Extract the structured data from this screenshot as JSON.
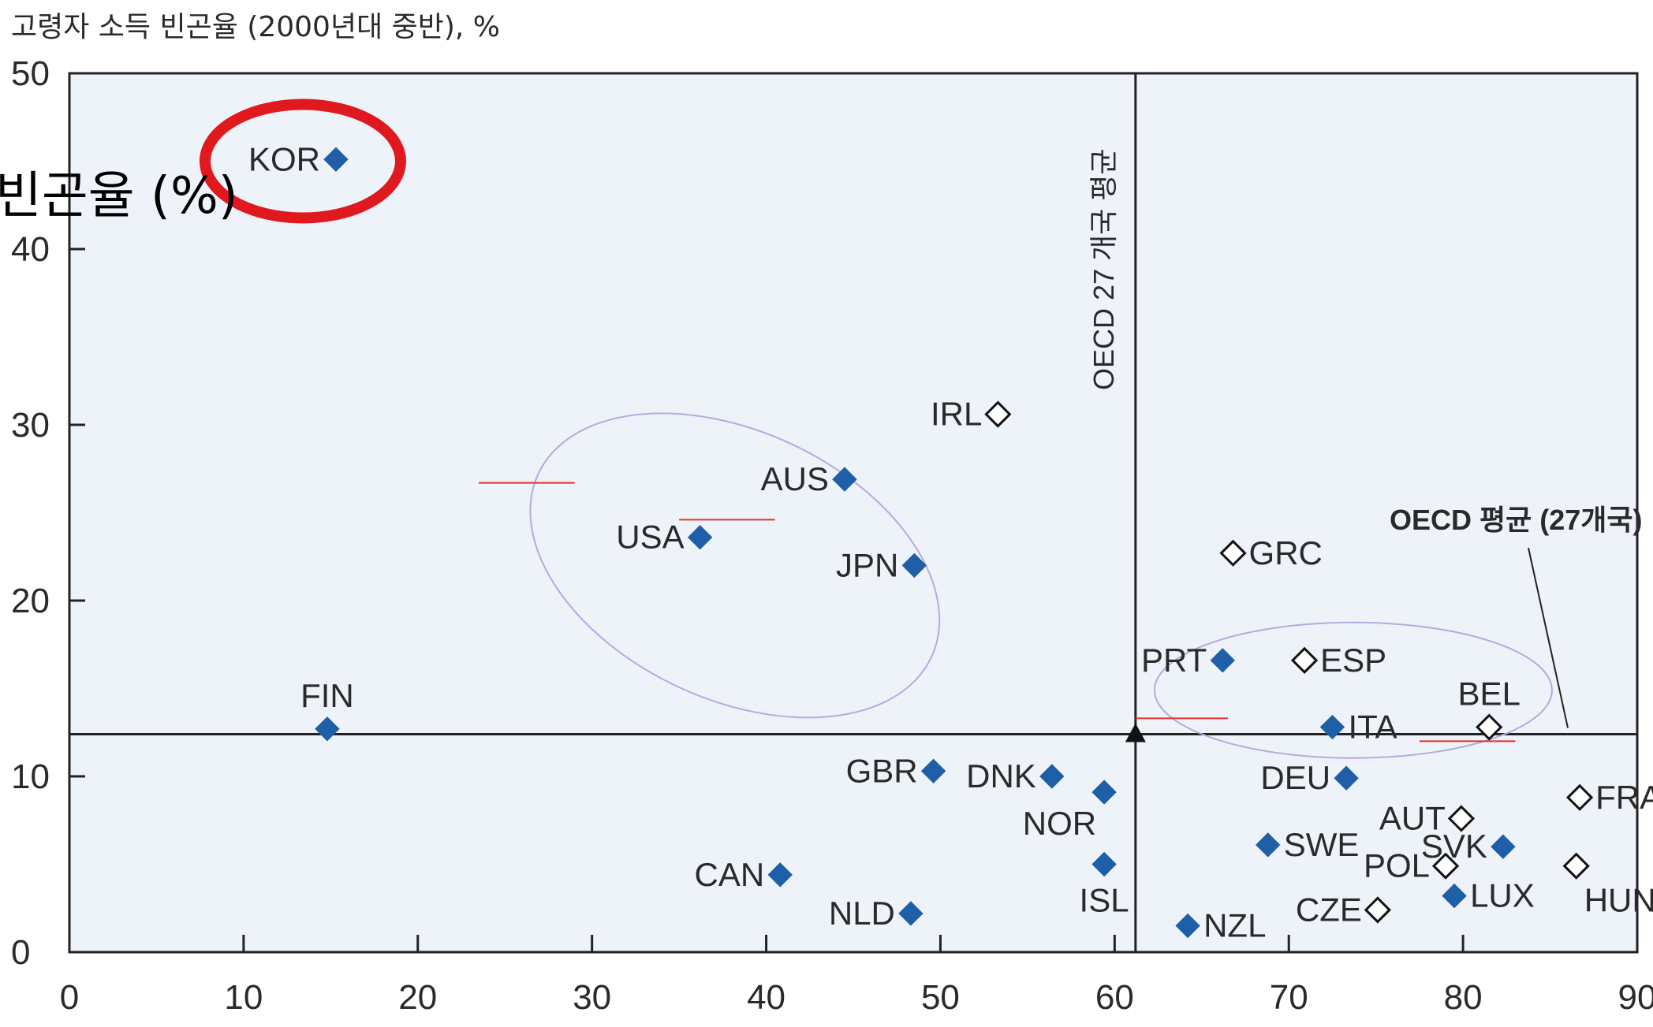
{
  "chart_data": {
    "type": "scatter",
    "title": "고령자 소득 빈곤율 (2000년대 중반), %",
    "ylabel": "빈곤율 (%)",
    "xlim": [
      0,
      90
    ],
    "ylim": [
      0,
      50
    ],
    "xticks": [
      "0",
      "10",
      "20",
      "30",
      "40",
      "50",
      "60",
      "70",
      "80",
      "90"
    ],
    "yticks": [
      "0",
      "10",
      "20",
      "30",
      "40",
      "50"
    ],
    "grid": false,
    "colors": {
      "background": "#eef3fa",
      "filled_marker": "#1f5fa8",
      "highlight_circle": "#e0191f",
      "highlight_ellipse": "#b8a8e0",
      "mark_line": "#e03030"
    },
    "points": [
      {
        "label": "KOR",
        "x": 15.3,
        "y": 45.1,
        "marker": "filled"
      },
      {
        "label": "FIN",
        "x": 14.8,
        "y": 12.7,
        "marker": "filled"
      },
      {
        "label": "USA",
        "x": 36.2,
        "y": 23.6,
        "marker": "filled"
      },
      {
        "label": "AUS",
        "x": 44.5,
        "y": 26.9,
        "marker": "filled"
      },
      {
        "label": "JPN",
        "x": 48.5,
        "y": 22.0,
        "marker": "filled"
      },
      {
        "label": "IRL",
        "x": 53.3,
        "y": 30.6,
        "marker": "hollow"
      },
      {
        "label": "GBR",
        "x": 49.6,
        "y": 10.3,
        "marker": "filled"
      },
      {
        "label": "DNK",
        "x": 56.4,
        "y": 10.0,
        "marker": "filled"
      },
      {
        "label": "NOR",
        "x": 59.4,
        "y": 9.1,
        "marker": "filled"
      },
      {
        "label": "ISL",
        "x": 59.4,
        "y": 5.0,
        "marker": "filled"
      },
      {
        "label": "CAN",
        "x": 40.8,
        "y": 4.4,
        "marker": "filled"
      },
      {
        "label": "NLD",
        "x": 48.3,
        "y": 2.2,
        "marker": "filled"
      },
      {
        "label": "NZL",
        "x": 64.2,
        "y": 1.5,
        "marker": "filled"
      },
      {
        "label": "GRC",
        "x": 66.8,
        "y": 22.7,
        "marker": "hollow"
      },
      {
        "label": "PRT",
        "x": 66.2,
        "y": 16.6,
        "marker": "filled"
      },
      {
        "label": "ESP",
        "x": 70.9,
        "y": 16.6,
        "marker": "hollow"
      },
      {
        "label": "ITA",
        "x": 72.5,
        "y": 12.8,
        "marker": "filled"
      },
      {
        "label": "BEL",
        "x": 81.5,
        "y": 12.8,
        "marker": "hollow"
      },
      {
        "label": "DEU",
        "x": 73.3,
        "y": 9.9,
        "marker": "filled"
      },
      {
        "label": "SWE",
        "x": 68.8,
        "y": 6.1,
        "marker": "filled"
      },
      {
        "label": "AUT",
        "x": 79.9,
        "y": 7.6,
        "marker": "hollow"
      },
      {
        "label": "POL",
        "x": 79.0,
        "y": 4.9,
        "marker": "hollow"
      },
      {
        "label": "CZE",
        "x": 75.1,
        "y": 2.4,
        "marker": "hollow"
      },
      {
        "label": "LUX",
        "x": 79.5,
        "y": 3.2,
        "marker": "filled"
      },
      {
        "label": "SVK",
        "x": 82.3,
        "y": 6.0,
        "marker": "filled"
      },
      {
        "label": "FRA",
        "x": 86.7,
        "y": 8.8,
        "marker": "hollow"
      },
      {
        "label": "HUN",
        "x": 86.5,
        "y": 4.9,
        "marker": "hollow"
      }
    ],
    "reference": {
      "x": 61.2,
      "y": 12.4,
      "vertical_label": "OECD 27 개국 평균",
      "horizontal_label": "OECD 평균 (27개국)"
    }
  }
}
